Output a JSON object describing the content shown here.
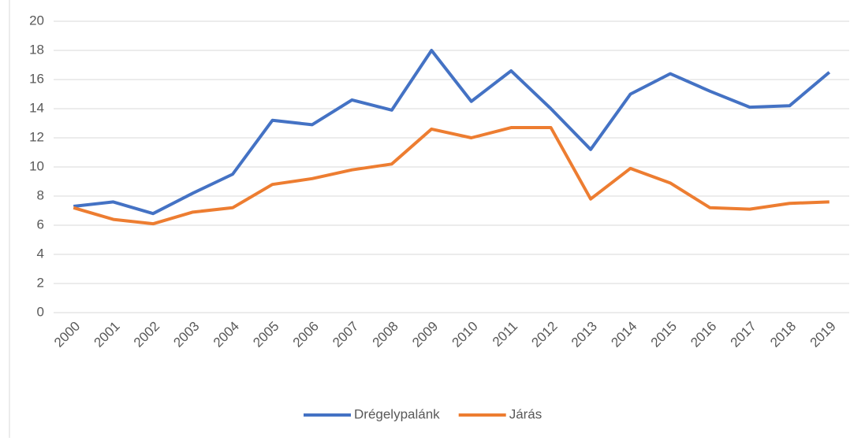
{
  "chart_data": {
    "type": "line",
    "categories": [
      "2000",
      "2001",
      "2002",
      "2003",
      "2004",
      "2005",
      "2006",
      "2007",
      "2008",
      "2009",
      "2010",
      "2011",
      "2012",
      "2013",
      "2014",
      "2015",
      "2016",
      "2017",
      "2018",
      "2019"
    ],
    "series": [
      {
        "name": "Drégelypalánk",
        "color": "#4472c4",
        "values": [
          7.3,
          7.6,
          6.8,
          8.2,
          9.5,
          13.2,
          12.9,
          14.6,
          13.9,
          18.0,
          14.5,
          16.6,
          14.0,
          11.2,
          15.0,
          16.4,
          15.2,
          14.1,
          14.2,
          16.5
        ]
      },
      {
        "name": "Járás",
        "color": "#ed7d31",
        "values": [
          7.2,
          6.4,
          6.1,
          6.9,
          7.2,
          8.8,
          9.2,
          9.8,
          10.2,
          12.6,
          12.0,
          12.7,
          12.7,
          7.8,
          9.9,
          8.9,
          7.2,
          7.1,
          7.5,
          7.6
        ]
      }
    ],
    "ylim": [
      0,
      20
    ],
    "yticks": [
      0,
      2,
      4,
      6,
      8,
      10,
      12,
      14,
      16,
      18,
      20
    ],
    "grid": true,
    "legend": "bottom"
  }
}
